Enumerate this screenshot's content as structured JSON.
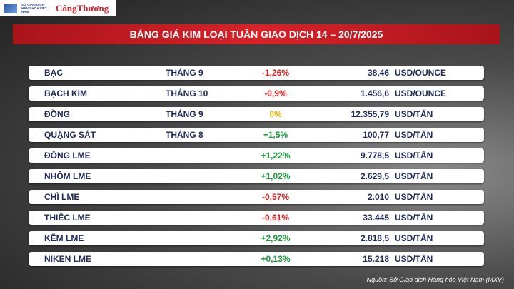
{
  "header": {
    "logo_text": "SỞ GIAO DỊCH HÀNG HÓA VIỆT NAM",
    "brand": "CôngThương",
    "title": "BẢNG GIÁ KIM LOẠI TUẦN GIAO DỊCH 14 – 20/7/2025"
  },
  "table": {
    "rows": [
      {
        "name": "BẠC",
        "month": "THÁNG 9",
        "change": "-1,26%",
        "change_color": "#e02020",
        "price": "38,46",
        "unit": "USD/OUNCE"
      },
      {
        "name": "BẠCH KIM",
        "month": "THÁNG 10",
        "change": "-0,9%",
        "change_color": "#e02020",
        "price": "1.456,6",
        "unit": "USD/OUNCE"
      },
      {
        "name": "ĐỒNG",
        "month": "THÁNG 9",
        "change": "0%",
        "change_color": "#e8b400",
        "price": "12.355,79",
        "unit": "USD/TẤN"
      },
      {
        "name": "QUẶNG SẮT",
        "month": "THÁNG 8",
        "change": "+1,5%",
        "change_color": "#1a9a3a",
        "price": "100,77",
        "unit": "USD/TẤN"
      },
      {
        "name": "ĐỒNG LME",
        "month": null,
        "change": "+1,22%",
        "change_color": "#1a9a3a",
        "price": "9.778,5",
        "unit": "USD/TẤN"
      },
      {
        "name": "NHÔM LME",
        "month": null,
        "change": "+1,02%",
        "change_color": "#1a9a3a",
        "price": "2.629,5",
        "unit": "USD/TẤN"
      },
      {
        "name": "CHÌ LME",
        "month": null,
        "change": "-0,57%",
        "change_color": "#e02020",
        "price": "2.010",
        "unit": "USD/TẤN"
      },
      {
        "name": "THIẾC LME",
        "month": null,
        "change": "-0,61%",
        "change_color": "#e02020",
        "price": "33.445",
        "unit": "USD/TẤN"
      },
      {
        "name": "KẼM LME",
        "month": null,
        "change": "+2,92%",
        "change_color": "#1a9a3a",
        "price": "2.818,5",
        "unit": "USD/TẤN"
      },
      {
        "name": "NIKEN LME",
        "month": null,
        "change": "+0,13%",
        "change_color": "#1a9a3a",
        "price": "15.218",
        "unit": "USD/TẤN"
      }
    ]
  },
  "source": "Nguồn: Sở Giao dịch Hàng hóa Việt Nam (MXV)"
}
